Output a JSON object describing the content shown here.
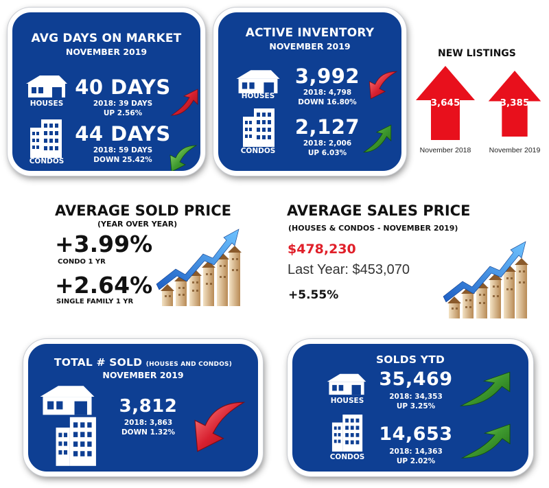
{
  "avg_days": {
    "title": "AVG DAYS ON MARKET",
    "subtitle": "NOVEMBER 2019",
    "houses": {
      "label": "HOUSES",
      "value": "40 DAYS",
      "prev": "2018: 39 DAYS",
      "change": "UP 2.56%",
      "direction": "up"
    },
    "condos": {
      "label": "CONDOS",
      "value": "44 DAYS",
      "prev": "2018: 59 DAYS",
      "change": "DOWN 25.42%",
      "direction": "down"
    }
  },
  "active_inventory": {
    "title": "ACTIVE INVENTORY",
    "subtitle": "NOVEMBER 2019",
    "houses": {
      "label": "HOUSES",
      "value": "3,992",
      "prev": "2018: 4,798",
      "change": "DOWN 16.80%",
      "direction": "down"
    },
    "condos": {
      "label": "CONDOS",
      "value": "2,127",
      "prev": "2018: 2,006",
      "change": "UP 6.03%",
      "direction": "up"
    }
  },
  "new_listings": {
    "title": "NEW LISTINGS",
    "items": [
      {
        "value": "3,645",
        "caption": "November 2018"
      },
      {
        "value": "3,385",
        "caption": "November 2019"
      }
    ]
  },
  "avg_sold_price": {
    "title": "AVERAGE SOLD PRICE",
    "subtitle": "(YEAR OVER YEAR)",
    "condo_value": "+3.99%",
    "condo_label": "CONDO 1 YR",
    "sf_value": "+2.64%",
    "sf_label": "SINGLE FAMILY 1 YR"
  },
  "avg_sales_price": {
    "title": "AVERAGE SALES PRICE",
    "subtitle": "(HOUSES & CONDOS - NOVEMBER 2019)",
    "current": "$478,230",
    "last_year": "Last Year: $453,070",
    "change": "+5.55%"
  },
  "total_sold": {
    "title": "TOTAL # SOLD",
    "title_small": "(HOUSES AND CONDOS)",
    "subtitle": "NOVEMBER 2019",
    "value": "3,812",
    "prev": "2018: 3,863",
    "change": "DOWN 1.32%",
    "direction": "down"
  },
  "solds_ytd": {
    "title": "SOLDS YTD",
    "houses": {
      "label": "HOUSES",
      "value": "35,469",
      "prev": "2018: 34,353",
      "change": "UP 3.25%",
      "direction": "up"
    },
    "condos": {
      "label": "CONDOS",
      "value": "14,653",
      "prev": "2018: 14,363",
      "change": "UP 2.02%",
      "direction": "up"
    }
  },
  "colors": {
    "card_blue": "#0e3f93",
    "up_green": "#3f9a2f",
    "down_red": "#d8202f",
    "price_red": "#e0202a"
  }
}
